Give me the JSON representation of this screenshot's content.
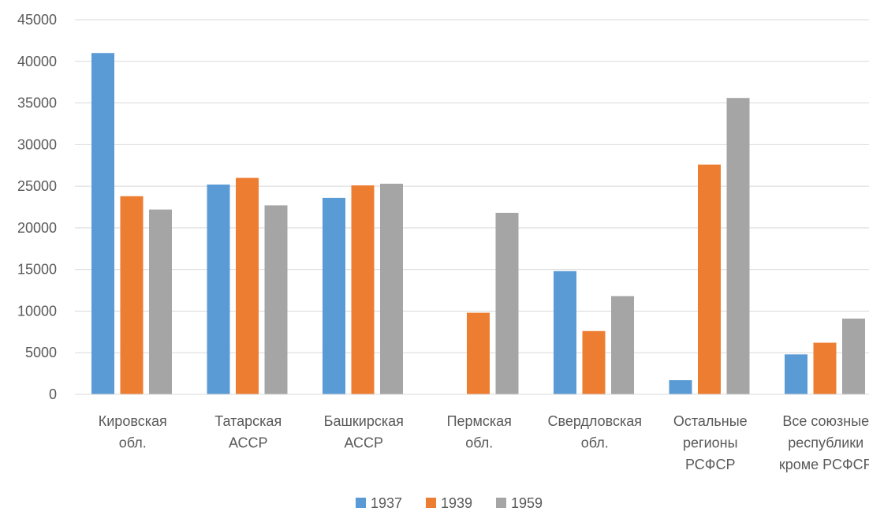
{
  "chart_data": {
    "type": "bar",
    "title": "",
    "xlabel": "",
    "ylabel": "",
    "ylim": [
      0,
      45000
    ],
    "yticks": [
      0,
      5000,
      10000,
      15000,
      20000,
      25000,
      30000,
      35000,
      40000,
      45000
    ],
    "grid": true,
    "legend_position": "bottom",
    "categories": [
      [
        "Кировская",
        "обл."
      ],
      [
        "Татарская",
        "АССР"
      ],
      [
        "Башкирская",
        "АССР"
      ],
      [
        "Пермская",
        "обл."
      ],
      [
        "Свердловская",
        "обл."
      ],
      [
        "Остальные",
        "регионы",
        "РСФСР"
      ],
      [
        "Все союзные",
        "республики",
        "кроме РСФСР"
      ]
    ],
    "series": [
      {
        "name": "1937",
        "color": "#5b9bd5",
        "values": [
          41000,
          25200,
          23600,
          null,
          14800,
          1700,
          4800
        ]
      },
      {
        "name": "1939",
        "color": "#ed7d31",
        "values": [
          23800,
          26000,
          25100,
          9800,
          7600,
          27600,
          6200
        ]
      },
      {
        "name": "1959",
        "color": "#a5a5a5",
        "values": [
          22200,
          22700,
          25300,
          21800,
          11800,
          35600,
          9100
        ]
      }
    ]
  }
}
